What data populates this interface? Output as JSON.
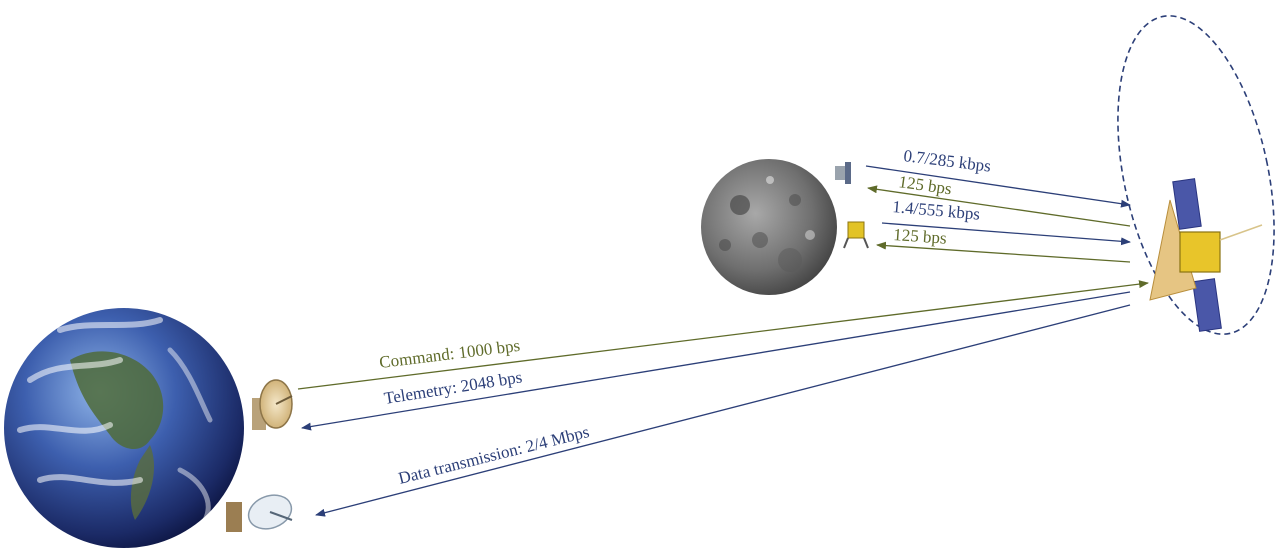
{
  "colors": {
    "uplink": "#5f6b2a",
    "downlink": "#2c3f78",
    "orbit": "#2c3f78"
  },
  "links": {
    "moon_up_1": "0.7/285 kbps",
    "moon_down_1": "125 bps",
    "moon_up_2": "1.4/555 kbps",
    "moon_down_2": "125 bps",
    "command": "Command: 1000 bps",
    "telemetry": "Telemetry: 2048 bps",
    "data": "Data transmission: 2/4 Mbps"
  },
  "icons": {
    "earth": "earth-icon",
    "moon": "moon-icon",
    "relay": "relay-satellite-icon",
    "dish": "ground-antenna-icon",
    "lander": "lunar-spacecraft-icon"
  }
}
